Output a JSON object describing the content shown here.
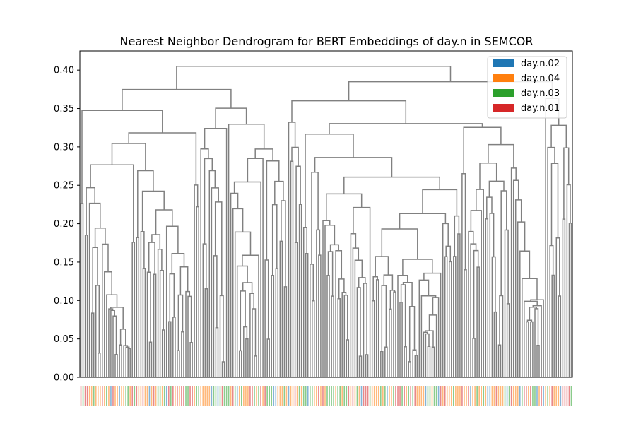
{
  "chart_data": {
    "type": "dendrogram",
    "title": "Nearest Neighbor Dendrogram for BERT Embeddings of day.n in SEMCOR",
    "xlabel": "",
    "ylabel": "",
    "ylim": [
      0,
      0.425
    ],
    "yticks": [
      "0.00",
      "0.05",
      "0.10",
      "0.15",
      "0.20",
      "0.25",
      "0.30",
      "0.35",
      "0.40"
    ],
    "grid": false,
    "link_color": "#808080",
    "legend_position": "top-right",
    "legend": [
      {
        "label": "day.n.02",
        "color": "#1f77b4"
      },
      {
        "label": "day.n.04",
        "color": "#ff7f0e"
      },
      {
        "label": "day.n.03",
        "color": "#2ca02c"
      },
      {
        "label": "day.n.01",
        "color": "#d62728"
      }
    ],
    "leaf_label_mix": [
      2,
      1,
      2,
      1,
      1,
      3,
      3,
      2,
      0,
      2,
      3,
      1
    ],
    "leaf_label_colors": [
      "#1f77b4",
      "#ff7f0e",
      "#2ca02c",
      "#d62728"
    ],
    "merge_heights_major": [
      0.405,
      0.395,
      0.39,
      0.385,
      0.378,
      0.358,
      0.355,
      0.34,
      0.338,
      0.335,
      0.33,
      0.32,
      0.313,
      0.312,
      0.31,
      0.305,
      0.3,
      0.298,
      0.297,
      0.295,
      0.29,
      0.285,
      0.282,
      0.276,
      0.275,
      0.273,
      0.265,
      0.262,
      0.258,
      0.256,
      0.255,
      0.254,
      0.253,
      0.252,
      0.25
    ]
  }
}
